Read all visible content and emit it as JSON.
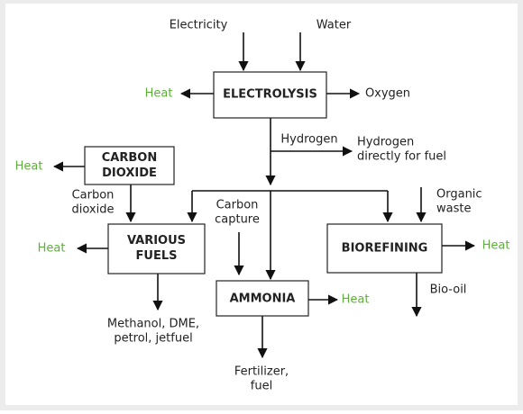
{
  "nodes": [
    {
      "lines": [
        "ELECTROLYSIS"
      ]
    },
    {
      "lines": [
        "CARBON",
        "DIOXIDE"
      ]
    },
    {
      "lines": [
        "VARIOUS",
        "FUELS"
      ]
    },
    {
      "lines": [
        "BIOREFINING"
      ]
    },
    {
      "lines": [
        "AMMONIA"
      ]
    }
  ],
  "labels": [
    {
      "lines": [
        "Electricity"
      ]
    },
    {
      "lines": [
        "Water"
      ]
    },
    {
      "lines": [
        "Heat"
      ]
    },
    {
      "lines": [
        "Oxygen"
      ]
    },
    {
      "lines": [
        "Hydrogen"
      ]
    },
    {
      "lines": [
        "Hydrogen",
        "directly for fuel"
      ]
    },
    {
      "lines": [
        "Heat"
      ]
    },
    {
      "lines": [
        "Carbon",
        "dioxide"
      ]
    },
    {
      "lines": [
        "Carbon",
        "capture"
      ]
    },
    {
      "lines": [
        "Organic",
        "waste"
      ]
    },
    {
      "lines": [
        "Heat"
      ]
    },
    {
      "lines": [
        "Heat"
      ]
    },
    {
      "lines": [
        "Methanol, DME,",
        "petrol, jetfuel"
      ]
    },
    {
      "lines": [
        "Bio-oil"
      ]
    },
    {
      "lines": [
        "Heat"
      ]
    },
    {
      "lines": [
        "Fertilizer,",
        "fuel"
      ]
    }
  ]
}
